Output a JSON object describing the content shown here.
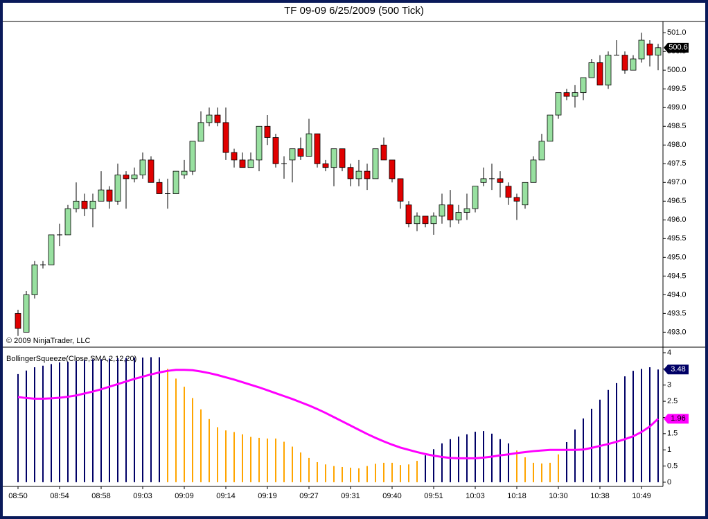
{
  "chart_data": [
    {
      "type": "candlestick",
      "title": "TF 09-09  6/25/2009 (500 Tick)",
      "annotation": "© 2009 NinjaTrader, LLC",
      "up_color": "#98e0a0",
      "down_color": "#e00000",
      "open": [
        493.5,
        493.0,
        494.0,
        494.8,
        494.8,
        495.6,
        495.6,
        496.3,
        496.5,
        496.3,
        496.5,
        496.8,
        496.5,
        497.2,
        497.1,
        497.2,
        497.6,
        497.0,
        496.7,
        496.7,
        497.2,
        497.3,
        498.1,
        498.6,
        498.8,
        498.6,
        497.8,
        497.6,
        497.4,
        497.6,
        498.5,
        498.2,
        497.5,
        497.6,
        497.9,
        497.7,
        498.3,
        497.5,
        497.4,
        497.9,
        497.4,
        497.1,
        497.3,
        497.1,
        498.0,
        497.6,
        497.1,
        496.4,
        495.9,
        496.1,
        495.9,
        496.1,
        496.4,
        496.0,
        496.2,
        496.3,
        497.0,
        497.1,
        497.1,
        496.9,
        496.6,
        496.4,
        497.0,
        497.6,
        498.1,
        498.8,
        499.4,
        499.3,
        499.4,
        499.8,
        500.2,
        499.6,
        500.4,
        500.4,
        500.0,
        500.3,
        500.7,
        500.4
      ],
      "high": [
        493.6,
        494.1,
        494.9,
        494.9,
        495.6,
        495.9,
        496.4,
        497.0,
        496.7,
        496.7,
        497.3,
        496.9,
        497.5,
        497.3,
        497.4,
        497.8,
        497.7,
        497.1,
        497.1,
        497.3,
        497.6,
        498.1,
        498.9,
        499.0,
        499.0,
        499.0,
        497.9,
        497.8,
        497.8,
        498.5,
        498.8,
        498.3,
        497.7,
        497.9,
        498.2,
        498.7,
        498.3,
        497.6,
        497.9,
        497.9,
        497.5,
        497.6,
        497.5,
        497.9,
        498.2,
        497.6,
        497.1,
        496.5,
        496.2,
        496.1,
        496.2,
        496.7,
        496.8,
        496.4,
        496.7,
        496.9,
        497.4,
        497.5,
        497.3,
        497.0,
        496.7,
        497.0,
        497.7,
        498.3,
        498.8,
        499.4,
        499.5,
        499.6,
        499.8,
        500.3,
        500.4,
        500.5,
        500.8,
        500.5,
        500.4,
        501.0,
        500.8,
        500.7
      ],
      "low": [
        492.9,
        493.0,
        493.9,
        494.7,
        494.8,
        495.3,
        495.6,
        496.2,
        496.1,
        495.8,
        496.5,
        496.3,
        496.4,
        496.3,
        497.0,
        497.1,
        497.0,
        496.7,
        496.3,
        496.7,
        497.1,
        497.2,
        498.1,
        498.5,
        498.5,
        497.6,
        497.4,
        497.4,
        497.4,
        497.3,
        498.0,
        497.4,
        497.1,
        497.0,
        497.6,
        497.7,
        497.4,
        497.3,
        496.9,
        497.3,
        496.9,
        496.9,
        496.8,
        497.1,
        497.6,
        497.0,
        496.3,
        495.8,
        495.7,
        495.8,
        495.6,
        495.9,
        495.8,
        495.9,
        496.0,
        496.2,
        496.9,
        496.8,
        496.6,
        496.4,
        496.0,
        496.3,
        497.0,
        497.6,
        498.1,
        498.7,
        499.2,
        499.0,
        499.2,
        499.8,
        499.6,
        499.5,
        500.4,
        499.9,
        500.0,
        500.2,
        500.1,
        500.0
      ],
      "close": [
        493.1,
        494.0,
        494.8,
        494.8,
        495.6,
        495.6,
        496.3,
        496.5,
        496.3,
        496.5,
        496.8,
        496.5,
        497.2,
        497.1,
        497.2,
        497.6,
        497.0,
        496.7,
        496.7,
        497.3,
        497.3,
        498.1,
        498.6,
        498.8,
        498.6,
        497.8,
        497.6,
        497.4,
        497.6,
        498.5,
        498.2,
        497.5,
        497.5,
        497.9,
        497.7,
        498.3,
        497.5,
        497.4,
        497.9,
        497.4,
        497.1,
        497.3,
        497.1,
        497.9,
        497.6,
        497.1,
        496.5,
        495.9,
        496.1,
        495.9,
        496.1,
        496.4,
        496.0,
        496.2,
        496.3,
        496.9,
        497.1,
        497.1,
        497.0,
        496.6,
        496.5,
        497.0,
        497.6,
        498.1,
        498.8,
        499.4,
        499.3,
        499.4,
        499.8,
        500.2,
        499.6,
        500.4,
        500.4,
        500.0,
        500.3,
        500.8,
        500.4,
        500.6
      ],
      "ylim": [
        492.6,
        501.3
      ],
      "yticks": [
        {
          "value": 493,
          "label": "493.0"
        },
        {
          "value": 493.5,
          "label": "493.5"
        },
        {
          "value": 494,
          "label": "494.0"
        },
        {
          "value": 494.5,
          "label": "494.5"
        },
        {
          "value": 495,
          "label": "495.0"
        },
        {
          "value": 495.5,
          "label": "495.5"
        },
        {
          "value": 496,
          "label": "496.0"
        },
        {
          "value": 496.5,
          "label": "496.5"
        },
        {
          "value": 497,
          "label": "497.0"
        },
        {
          "value": 497.5,
          "label": "497.5"
        },
        {
          "value": 498,
          "label": "498.0"
        },
        {
          "value": 498.5,
          "label": "498.5"
        },
        {
          "value": 499,
          "label": "499.0"
        },
        {
          "value": 499.5,
          "label": "499.5"
        },
        {
          "value": 500,
          "label": "500.0"
        },
        {
          "value": 500.5,
          "label": "500.5"
        },
        {
          "value": 501,
          "label": "501.0"
        }
      ]
    },
    {
      "type": "bar",
      "title": "BollingerSqueeze(Close,SMA,2,12,20)",
      "categories": [
        "08:50",
        null,
        null,
        null,
        null,
        "08:54",
        null,
        null,
        null,
        null,
        "08:58",
        null,
        null,
        null,
        null,
        "09:03",
        null,
        null,
        null,
        null,
        "09:09",
        null,
        null,
        null,
        null,
        "09:14",
        null,
        null,
        null,
        null,
        "09:19",
        null,
        null,
        null,
        null,
        "09:27",
        null,
        null,
        null,
        null,
        "09:31",
        null,
        null,
        null,
        null,
        "09:40",
        null,
        null,
        null,
        null,
        "09:51",
        null,
        null,
        null,
        null,
        "10:03",
        null,
        null,
        null,
        null,
        "10:18",
        null,
        null,
        null,
        null,
        "10:30",
        null,
        null,
        null,
        null,
        "10:38",
        null,
        null,
        null,
        null,
        "10:49",
        null,
        null
      ],
      "series": [
        {
          "type": "bar",
          "values": [
            3.34,
            3.45,
            3.55,
            3.6,
            3.65,
            3.7,
            3.72,
            3.75,
            3.77,
            3.8,
            3.8,
            3.82,
            3.83,
            3.84,
            3.85,
            3.85,
            3.86,
            3.86,
            3.5,
            3.2,
            2.95,
            2.6,
            2.25,
            1.95,
            1.7,
            1.6,
            1.55,
            1.48,
            1.4,
            1.37,
            1.35,
            1.35,
            1.25,
            1.1,
            0.92,
            0.75,
            0.62,
            0.55,
            0.5,
            0.47,
            0.45,
            0.43,
            0.5,
            0.57,
            0.6,
            0.6,
            0.53,
            0.55,
            0.66,
            0.83,
            1.02,
            1.2,
            1.33,
            1.41,
            1.48,
            1.56,
            1.58,
            1.5,
            1.33,
            1.2,
            0.98,
            0.77,
            0.6,
            0.58,
            0.6,
            0.86,
            1.24,
            1.63,
            1.97,
            2.27,
            2.55,
            2.85,
            3.06,
            3.27,
            3.44,
            3.5,
            3.55,
            3.48
          ],
          "colors": [
            "#000066",
            "#000066",
            "#000066",
            "#000066",
            "#000066",
            "#000066",
            "#000066",
            "#000066",
            "#000066",
            "#000066",
            "#000066",
            "#000066",
            "#000066",
            "#000066",
            "#000066",
            "#000066",
            "#000066",
            "#000066",
            "#ffa500",
            "#ffa500",
            "#ffa500",
            "#ffa500",
            "#ffa500",
            "#ffa500",
            "#ffa500",
            "#ffa500",
            "#ffa500",
            "#ffa500",
            "#ffa500",
            "#ffa500",
            "#ffa500",
            "#ffa500",
            "#ffa500",
            "#ffa500",
            "#ffa500",
            "#ffa500",
            "#ffa500",
            "#ffa500",
            "#ffa500",
            "#ffa500",
            "#ffa500",
            "#ffa500",
            "#ffa500",
            "#ffa500",
            "#ffa500",
            "#ffa500",
            "#ffa500",
            "#ffa500",
            "#ffa500",
            "#000066",
            "#000066",
            "#000066",
            "#000066",
            "#000066",
            "#000066",
            "#000066",
            "#000066",
            "#000066",
            "#000066",
            "#000066",
            "#ffa500",
            "#ffa500",
            "#ffa500",
            "#ffa500",
            "#ffa500",
            "#ffa500",
            "#000066",
            "#000066",
            "#000066",
            "#000066",
            "#000066",
            "#000066",
            "#000066",
            "#000066",
            "#000066",
            "#000066",
            "#000066",
            "#000066"
          ]
        },
        {
          "type": "line",
          "color": "#ff00ff",
          "values": [
            2.63,
            2.6,
            2.58,
            2.58,
            2.59,
            2.61,
            2.64,
            2.68,
            2.74,
            2.8,
            2.87,
            2.95,
            3.03,
            3.11,
            3.19,
            3.26,
            3.33,
            3.39,
            3.44,
            3.47,
            3.47,
            3.46,
            3.42,
            3.37,
            3.31,
            3.24,
            3.17,
            3.09,
            3.01,
            2.93,
            2.84,
            2.75,
            2.66,
            2.57,
            2.47,
            2.37,
            2.26,
            2.14,
            2.01,
            1.88,
            1.75,
            1.62,
            1.49,
            1.37,
            1.26,
            1.16,
            1.07,
            1.0,
            0.93,
            0.87,
            0.82,
            0.78,
            0.75,
            0.74,
            0.74,
            0.74,
            0.76,
            0.79,
            0.83,
            0.86,
            0.9,
            0.93,
            0.96,
            0.98,
            1.0,
            1.0,
            1.0,
            1.0,
            1.01,
            1.06,
            1.12,
            1.18,
            1.25,
            1.33,
            1.42,
            1.55,
            1.72,
            1.96
          ]
        }
      ],
      "ylim": [
        -0.13,
        4.15
      ],
      "yticks": [
        0,
        0.5,
        1,
        1.5,
        2,
        2.5,
        3,
        3.5,
        4
      ]
    }
  ]
}
